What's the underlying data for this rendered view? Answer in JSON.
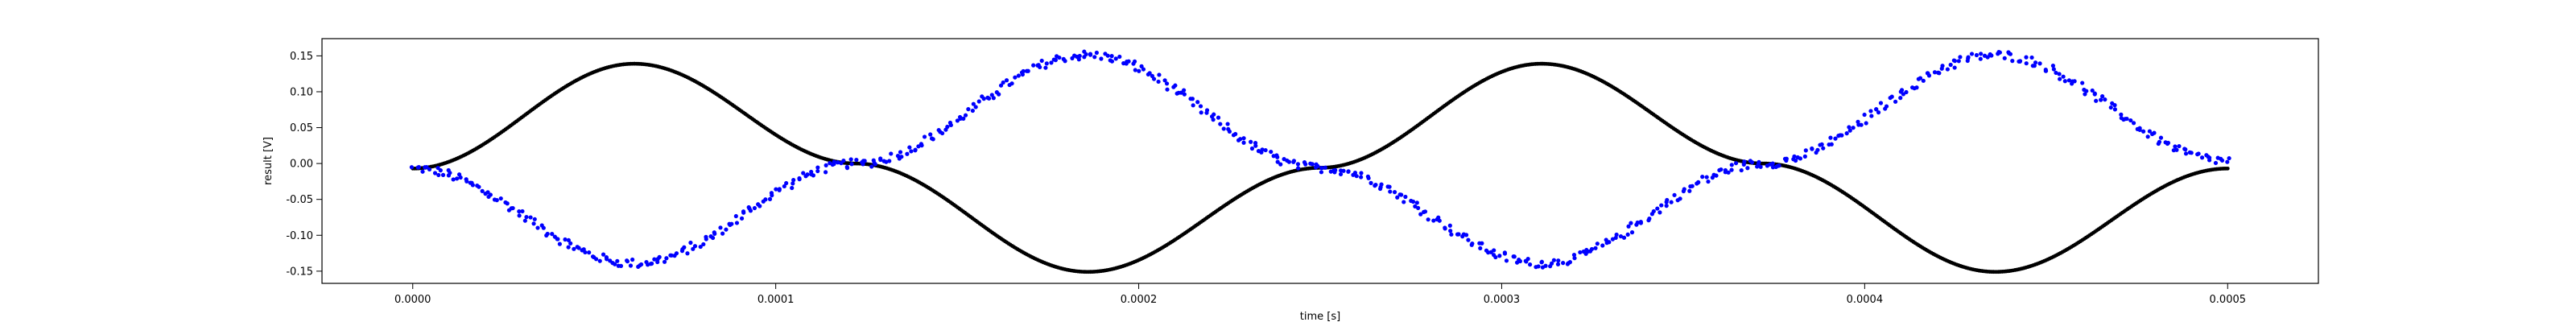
{
  "chart_data": {
    "type": "scatter",
    "title": "",
    "xlabel": "time [s]",
    "ylabel": "result [V]",
    "xlim": [
      -2.5e-05,
      0.000525
    ],
    "ylim": [
      -0.167,
      0.174
    ],
    "xticks": [
      "0.0000",
      "0.0001",
      "0.0002",
      "0.0003",
      "0.0004",
      "0.0005"
    ],
    "xtick_values": [
      0.0,
      0.0001,
      0.0002,
      0.0003,
      0.0004,
      0.0005
    ],
    "yticks": [
      "-0.15",
      "-0.10",
      "-0.05",
      "0.00",
      "0.05",
      "0.10",
      "0.15"
    ],
    "ytick_values": [
      -0.15,
      -0.1,
      -0.05,
      0.0,
      0.05,
      0.1,
      0.15
    ],
    "grid": false,
    "legend": "none",
    "series": [
      {
        "color": "#000000",
        "marker": "dot",
        "x_range": [
          0.0,
          0.0005
        ],
        "points": 1000,
        "shape": "sine, ~2 periods",
        "samples": [
          [
            0.0,
            -0.007
          ],
          [
            6.1e-05,
            0.139
          ],
          [
            0.000122,
            0.0
          ],
          [
            0.000186,
            -0.151
          ],
          [
            0.00025,
            -0.006
          ],
          [
            0.000311,
            0.139
          ],
          [
            0.000372,
            0.0
          ],
          [
            0.000436,
            -0.151
          ],
          [
            0.0005,
            -0.007
          ]
        ]
      },
      {
        "color": "#0000ff",
        "marker": "dot",
        "x_range": [
          0.0,
          0.0005
        ],
        "points": 700,
        "shape": "noisy sine, opposite phase, ~2 periods",
        "samples": [
          [
            0.0,
            -0.007
          ],
          [
            6.1e-05,
            -0.139
          ],
          [
            0.000122,
            0.0
          ],
          [
            0.000186,
            0.151
          ],
          [
            0.00025,
            -0.006
          ],
          [
            0.000311,
            -0.139
          ],
          [
            0.000372,
            0.0
          ],
          [
            0.000436,
            0.151
          ],
          [
            0.0005,
            0.004
          ]
        ]
      }
    ]
  }
}
